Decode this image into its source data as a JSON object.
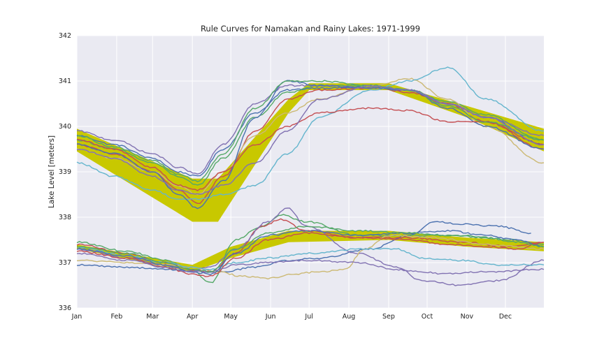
{
  "chart_data": {
    "type": "line",
    "title": "Rule Curves for Namakan and Rainy Lakes: 1971-1999",
    "xlabel": "",
    "ylabel": "Lake Level [meters]",
    "ylim": [
      336,
      342
    ],
    "xlim_doy": [
      1,
      365
    ],
    "x_ticks": [
      {
        "label": "Jan",
        "doy": 1
      },
      {
        "label": "Feb",
        "doy": 32
      },
      {
        "label": "Mar",
        "doy": 60
      },
      {
        "label": "Apr",
        "doy": 91
      },
      {
        "label": "May",
        "doy": 121
      },
      {
        "label": "Jun",
        "doy": 152
      },
      {
        "label": "Jul",
        "doy": 182
      },
      {
        "label": "Aug",
        "doy": 213
      },
      {
        "label": "Sep",
        "doy": 244
      },
      {
        "label": "Oct",
        "doy": 274
      },
      {
        "label": "Nov",
        "doy": 305
      },
      {
        "label": "Dec",
        "doy": 335
      }
    ],
    "y_ticks": [
      336,
      337,
      338,
      339,
      340,
      341,
      342
    ],
    "grid": true,
    "rule_bands": [
      {
        "doy": [
          1,
          91,
          111,
          166,
          182,
          244,
          305,
          365
        ],
        "lower": [
          339.45,
          337.9,
          337.9,
          340.3,
          340.8,
          340.8,
          340.2,
          339.45
        ],
        "upper": [
          339.95,
          338.85,
          338.85,
          340.6,
          340.95,
          340.95,
          340.45,
          339.95
        ],
        "color": "#c8c800"
      },
      {
        "doy": [
          1,
          91,
          121,
          166,
          244,
          305,
          365
        ],
        "lower": [
          337.3,
          336.8,
          337.1,
          337.45,
          337.5,
          337.35,
          337.25
        ],
        "upper": [
          337.4,
          336.95,
          337.35,
          337.7,
          337.7,
          337.55,
          337.45
        ],
        "color": "#c8c800"
      }
    ],
    "series": [
      {
        "color": "#4c72b0",
        "doy": [
          1,
          30,
          60,
          80,
          95,
          115,
          140,
          165,
          190,
          230,
          260,
          290,
          320,
          365
        ],
        "values": [
          339.8,
          339.6,
          339.3,
          339.0,
          338.9,
          339.5,
          340.3,
          340.8,
          340.85,
          340.85,
          340.8,
          340.5,
          340.2,
          339.6
        ]
      },
      {
        "color": "#55a868",
        "doy": [
          1,
          30,
          60,
          80,
          95,
          115,
          140,
          165,
          190,
          230,
          260,
          290,
          320,
          365
        ],
        "values": [
          339.7,
          339.5,
          339.2,
          338.9,
          338.7,
          339.3,
          340.2,
          340.75,
          340.9,
          340.9,
          340.8,
          340.55,
          340.25,
          339.7
        ]
      },
      {
        "color": "#c44e52",
        "doy": [
          1,
          30,
          60,
          80,
          95,
          115,
          140,
          165,
          190,
          230,
          260,
          290,
          320,
          365
        ],
        "values": [
          339.6,
          339.4,
          339.0,
          338.6,
          338.3,
          338.9,
          339.9,
          340.6,
          340.8,
          340.85,
          340.75,
          340.5,
          340.1,
          339.5
        ]
      },
      {
        "color": "#8172b2",
        "doy": [
          1,
          30,
          60,
          80,
          95,
          115,
          140,
          165,
          190,
          230,
          260,
          290,
          320,
          365
        ],
        "values": [
          339.9,
          339.7,
          339.4,
          339.1,
          338.95,
          339.6,
          340.5,
          340.9,
          340.9,
          340.85,
          340.8,
          340.5,
          340.2,
          339.8
        ]
      },
      {
        "color": "#ccb974",
        "doy": [
          1,
          30,
          60,
          80,
          95,
          115,
          140,
          165,
          190,
          230,
          260,
          290,
          320,
          365
        ],
        "values": [
          339.5,
          339.3,
          339.0,
          338.7,
          338.5,
          339.0,
          339.8,
          340.3,
          340.6,
          340.9,
          341.05,
          340.6,
          340.0,
          339.2
        ]
      },
      {
        "color": "#64b5cd",
        "doy": [
          1,
          30,
          60,
          80,
          95,
          115,
          140,
          165,
          190,
          230,
          260,
          290,
          320,
          365
        ],
        "values": [
          339.2,
          338.9,
          338.6,
          338.4,
          338.4,
          338.5,
          338.7,
          339.4,
          340.2,
          340.8,
          341.0,
          341.3,
          340.6,
          339.9
        ]
      },
      {
        "color": "#4c72b0",
        "doy": [
          1,
          30,
          60,
          80,
          95,
          115,
          140,
          165,
          190,
          230,
          260,
          290,
          320,
          365
        ],
        "values": [
          339.6,
          339.4,
          339.0,
          338.5,
          338.2,
          338.8,
          340.2,
          341.0,
          340.9,
          340.85,
          340.8,
          340.4,
          340.0,
          339.5
        ]
      },
      {
        "color": "#c44e52",
        "doy": [
          1,
          30,
          60,
          80,
          95,
          115,
          140,
          165,
          190,
          230,
          260,
          290,
          320,
          365
        ],
        "values": [
          339.7,
          339.5,
          339.1,
          338.7,
          338.6,
          339.0,
          339.6,
          340.0,
          340.3,
          340.4,
          340.35,
          340.1,
          340.1,
          339.6
        ]
      },
      {
        "color": "#55a868",
        "doy": [
          1,
          30,
          60,
          80,
          95,
          115,
          140,
          165,
          190,
          230,
          260,
          290,
          320,
          365
        ],
        "values": [
          339.8,
          339.55,
          339.25,
          338.95,
          338.8,
          339.4,
          340.4,
          341.0,
          341.0,
          340.9,
          340.8,
          340.45,
          340.1,
          339.7
        ]
      },
      {
        "color": "#8172b2",
        "doy": [
          1,
          30,
          60,
          80,
          95,
          115,
          140,
          165,
          190,
          230,
          260,
          290,
          320,
          365
        ],
        "values": [
          339.5,
          339.3,
          338.9,
          338.6,
          338.5,
          338.7,
          339.2,
          339.9,
          340.6,
          340.9,
          340.8,
          340.5,
          340.2,
          339.6
        ]
      },
      {
        "color": "#4c72b0",
        "doy": [
          1,
          40,
          70,
          95,
          115,
          140,
          165,
          190,
          230,
          260,
          280,
          300,
          330,
          355
        ],
        "values": [
          336.95,
          336.9,
          336.85,
          336.8,
          336.8,
          336.9,
          337.05,
          337.1,
          337.3,
          337.6,
          337.9,
          337.85,
          337.8,
          337.65
        ]
      },
      {
        "color": "#55a868",
        "doy": [
          1,
          40,
          70,
          90,
          105,
          125,
          145,
          160,
          180,
          220,
          260,
          300,
          340,
          365
        ],
        "values": [
          337.45,
          337.25,
          337.05,
          336.85,
          336.55,
          337.5,
          337.8,
          338.05,
          337.9,
          337.6,
          337.6,
          337.6,
          337.5,
          337.4
        ]
      },
      {
        "color": "#c44e52",
        "doy": [
          1,
          40,
          70,
          90,
          105,
          125,
          145,
          160,
          180,
          220,
          260,
          300,
          340,
          365
        ],
        "values": [
          337.4,
          337.2,
          337.0,
          336.85,
          336.8,
          337.2,
          337.8,
          337.95,
          337.7,
          337.55,
          337.55,
          337.45,
          337.35,
          337.45
        ]
      },
      {
        "color": "#8172b2",
        "doy": [
          1,
          40,
          70,
          90,
          105,
          125,
          150,
          165,
          180,
          220,
          250,
          270,
          300,
          330,
          365
        ],
        "values": [
          337.3,
          337.1,
          336.95,
          336.8,
          336.9,
          337.3,
          337.9,
          338.2,
          337.8,
          337.2,
          336.9,
          336.6,
          336.5,
          336.6,
          337.05
        ]
      },
      {
        "color": "#ccb974",
        "doy": [
          1,
          40,
          70,
          90,
          110,
          130,
          150,
          170,
          190,
          210,
          225,
          245,
          280,
          320,
          365
        ],
        "values": [
          337.05,
          337.0,
          336.95,
          336.9,
          336.8,
          336.7,
          336.65,
          336.75,
          336.8,
          336.85,
          337.3,
          337.6,
          337.55,
          337.4,
          337.3
        ]
      },
      {
        "color": "#64b5cd",
        "doy": [
          1,
          40,
          70,
          90,
          105,
          125,
          150,
          180,
          220,
          250,
          270,
          300,
          330,
          365
        ],
        "values": [
          337.35,
          337.15,
          337.0,
          336.9,
          336.85,
          337.0,
          337.1,
          337.2,
          337.3,
          337.3,
          337.1,
          337.05,
          336.95,
          336.95
        ]
      },
      {
        "color": "#4c72b0",
        "doy": [
          1,
          40,
          70,
          90,
          105,
          125,
          150,
          180,
          220,
          260,
          290,
          320,
          345,
          365
        ],
        "values": [
          337.3,
          337.15,
          336.95,
          336.8,
          336.75,
          337.2,
          337.6,
          337.7,
          337.6,
          337.65,
          337.7,
          337.6,
          337.5,
          337.35
        ]
      },
      {
        "color": "#c44e52",
        "doy": [
          1,
          40,
          70,
          90,
          105,
          125,
          150,
          180,
          220,
          260,
          290,
          320,
          345,
          365
        ],
        "values": [
          337.25,
          337.1,
          336.9,
          336.75,
          336.7,
          337.1,
          337.5,
          337.65,
          337.55,
          337.5,
          337.4,
          337.35,
          337.3,
          337.45
        ]
      },
      {
        "color": "#8172b2",
        "doy": [
          1,
          40,
          70,
          90,
          105,
          125,
          150,
          180,
          220,
          250,
          265,
          290,
          320,
          365
        ],
        "values": [
          337.2,
          337.05,
          336.9,
          336.8,
          336.8,
          336.95,
          337.0,
          337.05,
          337.0,
          336.85,
          336.8,
          336.75,
          336.8,
          336.85
        ]
      },
      {
        "color": "#55a868",
        "doy": [
          1,
          40,
          70,
          90,
          105,
          125,
          150,
          180,
          220,
          260,
          290,
          320,
          345,
          365
        ],
        "values": [
          337.35,
          337.2,
          337.0,
          336.85,
          336.8,
          337.3,
          337.65,
          337.8,
          337.7,
          337.65,
          337.6,
          337.55,
          337.45,
          337.35
        ]
      }
    ]
  }
}
